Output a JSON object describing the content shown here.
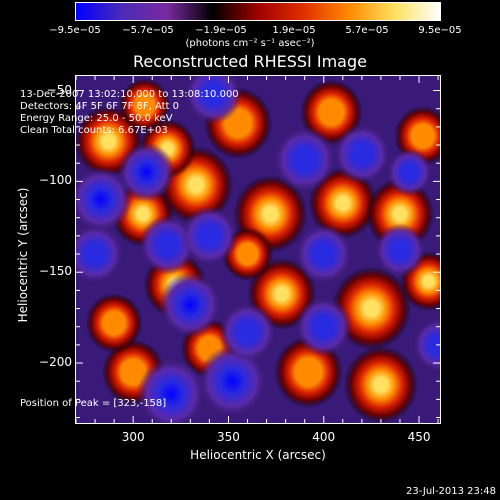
{
  "colorbar": {
    "ticks": [
      "−9.5e−05",
      "−5.7e−05",
      "−1.9e−05",
      "1.9e−05",
      "5.7e−05",
      "9.5e−05"
    ],
    "units": "(photons cm⁻² s⁻¹ asec⁻²)"
  },
  "chart_data": {
    "type": "heatmap",
    "title": "Reconstructed RHESSI Image",
    "xlabel": "Heliocentric X (arcsec)",
    "ylabel": "Heliocentric Y (arcsec)",
    "xlim": [
      270,
      461
    ],
    "ylim": [
      -233,
      -42
    ],
    "x_ticks": [
      300,
      350,
      400,
      450
    ],
    "y_ticks": [
      -50,
      -100,
      -150,
      -200
    ],
    "color_range": [
      -9.5e-05,
      9.5e-05
    ],
    "colormap": [
      "#0000ff",
      "#4b2ab8",
      "#7a2aa0",
      "#000000",
      "#a00000",
      "#e03000",
      "#ff8a00",
      "#ffe060",
      "#ffffff"
    ],
    "info_lines": [
      "13-Dec-2007 13:02:10.000 to 13:08:10.000",
      "Detectors: 4F 5F 6F 7F 8F, Att 0",
      "Energy Range: 25.0 - 50.0 keV",
      "Clean    Total counts: 6.67E+03"
    ],
    "peak_label": "Position of Peak = [323,-158]",
    "peak": [
      323,
      -158
    ],
    "blobs": [
      {
        "x": 322,
        "y": -157,
        "r": 11,
        "v": 1.0
      },
      {
        "x": 287,
        "y": -78,
        "r": 12,
        "v": 0.8
      },
      {
        "x": 305,
        "y": -118,
        "r": 11,
        "v": 0.65
      },
      {
        "x": 333,
        "y": -102,
        "r": 13,
        "v": 0.7
      },
      {
        "x": 372,
        "y": -118,
        "r": 13,
        "v": 0.72
      },
      {
        "x": 410,
        "y": -112,
        "r": 12,
        "v": 0.65
      },
      {
        "x": 440,
        "y": -118,
        "r": 12,
        "v": 0.62
      },
      {
        "x": 355,
        "y": -68,
        "r": 12,
        "v": 0.55
      },
      {
        "x": 404,
        "y": -62,
        "r": 11,
        "v": 0.5
      },
      {
        "x": 452,
        "y": -75,
        "r": 10,
        "v": 0.55
      },
      {
        "x": 378,
        "y": -162,
        "r": 12,
        "v": 0.6
      },
      {
        "x": 425,
        "y": -170,
        "r": 14,
        "v": 0.7
      },
      {
        "x": 455,
        "y": -155,
        "r": 10,
        "v": 0.6
      },
      {
        "x": 300,
        "y": -205,
        "r": 11,
        "v": 0.45
      },
      {
        "x": 340,
        "y": -192,
        "r": 10,
        "v": 0.5
      },
      {
        "x": 392,
        "y": -205,
        "r": 12,
        "v": 0.55
      },
      {
        "x": 430,
        "y": -212,
        "r": 13,
        "v": 0.75
      },
      {
        "x": 318,
        "y": -82,
        "r": 10,
        "v": 0.6
      },
      {
        "x": 306,
        "y": -58,
        "r": 9,
        "v": 0.45
      },
      {
        "x": 290,
        "y": -178,
        "r": 10,
        "v": 0.4
      },
      {
        "x": 360,
        "y": -140,
        "r": 9,
        "v": 0.5
      },
      {
        "x": 283,
        "y": -110,
        "r": 11,
        "v": -0.6
      },
      {
        "x": 318,
        "y": -135,
        "r": 10,
        "v": -0.55
      },
      {
        "x": 340,
        "y": -130,
        "r": 10,
        "v": -0.5
      },
      {
        "x": 307,
        "y": -95,
        "r": 10,
        "v": -0.6
      },
      {
        "x": 330,
        "y": -168,
        "r": 11,
        "v": -0.65
      },
      {
        "x": 352,
        "y": -210,
        "r": 12,
        "v": -0.8
      },
      {
        "x": 320,
        "y": -217,
        "r": 12,
        "v": -0.75
      },
      {
        "x": 390,
        "y": -88,
        "r": 11,
        "v": -0.55
      },
      {
        "x": 420,
        "y": -85,
        "r": 10,
        "v": -0.5
      },
      {
        "x": 400,
        "y": -140,
        "r": 10,
        "v": -0.45
      },
      {
        "x": 440,
        "y": -138,
        "r": 9,
        "v": -0.45
      },
      {
        "x": 360,
        "y": -183,
        "r": 10,
        "v": -0.55
      },
      {
        "x": 400,
        "y": -180,
        "r": 10,
        "v": -0.5
      },
      {
        "x": 280,
        "y": -140,
        "r": 10,
        "v": -0.45
      },
      {
        "x": 445,
        "y": -95,
        "r": 8,
        "v": -0.45
      },
      {
        "x": 342,
        "y": -52,
        "r": 10,
        "v": -0.5
      },
      {
        "x": 460,
        "y": -190,
        "r": 9,
        "v": -0.4
      }
    ]
  },
  "timestamp": "23-Jul-2013 23:48"
}
